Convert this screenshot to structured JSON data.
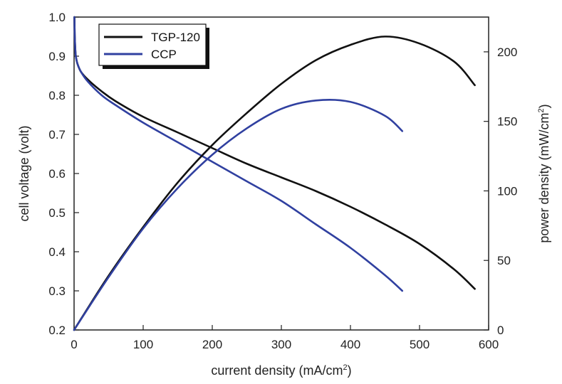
{
  "chart_data": {
    "type": "line",
    "title": "",
    "xlabel": "current density (mA/cm",
    "xlabel_sup": "2",
    "xlabel_end": ")",
    "ylabel_left": "cell voltage (volt)",
    "ylabel_right": "power density (mW/cm",
    "ylabel_right_sup": "2",
    "ylabel_right_end": ")",
    "xlim": [
      0,
      600
    ],
    "ylim_left": [
      0.2,
      1.0
    ],
    "ylim_right": [
      0,
      225
    ],
    "x_ticks": [
      "0",
      "100",
      "200",
      "300",
      "400",
      "500",
      "600"
    ],
    "y_left_ticks": [
      "0.2",
      "0.3",
      "0.4",
      "0.5",
      "0.6",
      "0.7",
      "0.8",
      "0.9",
      "1.0"
    ],
    "y_right_ticks": [
      "0",
      "50",
      "100",
      "150",
      "200"
    ],
    "legend": {
      "placement": "top-left",
      "entries": [
        {
          "name": "TGP-120",
          "color": "#111111"
        },
        {
          "name": "CCP",
          "color": "#3040a0"
        }
      ]
    },
    "series": [
      {
        "name": "TGP-120",
        "axis": "left",
        "kind": "voltage",
        "color": "#111111",
        "x": [
          0.5,
          1,
          2,
          3,
          5,
          10,
          20,
          40,
          60,
          100,
          150,
          200,
          250,
          300,
          350,
          400,
          450,
          500,
          550,
          580
        ],
        "y": [
          1.0,
          0.95,
          0.91,
          0.895,
          0.88,
          0.86,
          0.84,
          0.81,
          0.785,
          0.745,
          0.705,
          0.665,
          0.625,
          0.59,
          0.555,
          0.515,
          0.47,
          0.42,
          0.355,
          0.305
        ]
      },
      {
        "name": "CCP",
        "axis": "left",
        "kind": "voltage",
        "color": "#3040a0",
        "x": [
          0.5,
          1,
          2,
          3,
          5,
          10,
          20,
          40,
          60,
          100,
          150,
          200,
          250,
          300,
          350,
          400,
          450,
          475
        ],
        "y": [
          1.0,
          0.95,
          0.91,
          0.895,
          0.88,
          0.86,
          0.835,
          0.8,
          0.775,
          0.73,
          0.68,
          0.63,
          0.58,
          0.53,
          0.47,
          0.41,
          0.34,
          0.3
        ]
      },
      {
        "name": "TGP-120",
        "axis": "right",
        "kind": "power",
        "color": "#111111",
        "x": [
          0,
          50,
          100,
          150,
          200,
          250,
          300,
          350,
          400,
          450,
          500,
          550,
          580
        ],
        "y": [
          0,
          39,
          74,
          106,
          133,
          156,
          177,
          194,
          205,
          211,
          206,
          193,
          176
        ]
      },
      {
        "name": "CCP",
        "axis": "right",
        "kind": "power",
        "color": "#3040a0",
        "x": [
          0,
          50,
          100,
          150,
          200,
          250,
          300,
          350,
          400,
          450,
          475
        ],
        "y": [
          0,
          38,
          73,
          102,
          126,
          145,
          159,
          165,
          164,
          154,
          143
        ]
      }
    ]
  }
}
